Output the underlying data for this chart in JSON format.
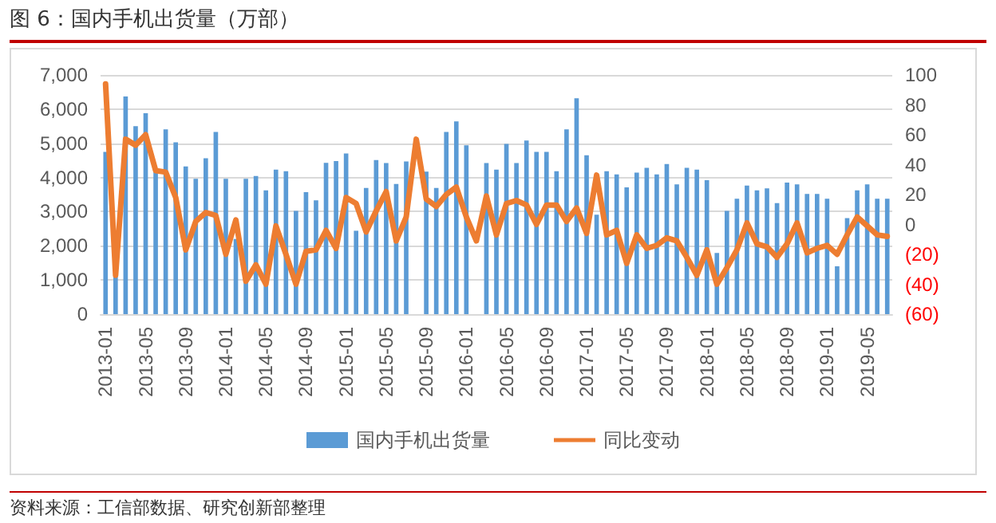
{
  "chart_data": {
    "type": "bar",
    "title": "图 6：国内手机出货量（万部）",
    "categories": [
      "2013-01",
      null,
      null,
      null,
      "2013-05",
      null,
      null,
      null,
      "2013-09",
      null,
      null,
      null,
      "2014-01",
      null,
      null,
      null,
      "2014-05",
      null,
      null,
      null,
      "2014-09",
      null,
      null,
      null,
      "2015-01",
      null,
      null,
      null,
      "2015-05",
      null,
      null,
      null,
      "2015-09",
      null,
      null,
      null,
      "2016-01",
      null,
      null,
      null,
      "2016-05",
      null,
      null,
      null,
      "2016-09",
      null,
      null,
      null,
      "2017-01",
      null,
      null,
      null,
      "2017-05",
      null,
      null,
      null,
      "2017-09",
      null,
      null,
      null,
      "2018-01",
      null,
      null,
      null,
      "2018-05",
      null,
      null,
      null,
      "2018-09",
      null,
      null,
      null,
      "2019-01",
      null,
      null,
      null,
      "2019-05",
      null,
      null
    ],
    "series": [
      {
        "name": "国内手机出货量",
        "color": "#5b9bd5",
        "values": [
          4750,
          1200,
          6370,
          5500,
          5880,
          4200,
          5410,
          5030,
          4320,
          3960,
          4560,
          5330,
          3960,
          2200,
          3960,
          4040,
          3620,
          4230,
          4180,
          3020,
          3570,
          3330,
          4430,
          4480,
          4700,
          2440,
          3690,
          4510,
          4420,
          3810,
          4470,
          null,
          4170,
          3690,
          5330,
          5640,
          4940,
          null,
          4420,
          4230,
          4980,
          4420,
          5080,
          4750,
          4750,
          4180,
          5410,
          6320,
          4650,
          2910,
          4180,
          4090,
          3710,
          4140,
          4280,
          4090,
          4390,
          3800,
          4280,
          4230,
          3920,
          1790,
          3020,
          3380,
          3760,
          3620,
          3680,
          3250,
          3850,
          3800,
          3520,
          3520,
          3380,
          1400,
          2810,
          3620,
          3800,
          3380,
          3380
        ]
      },
      {
        "name": "同比变动",
        "type": "line",
        "axis": "y2",
        "color": "#ed7d31",
        "values": [
          94,
          -34,
          57,
          53,
          60,
          36,
          35,
          18,
          -17,
          2,
          8,
          6,
          -20,
          3,
          -38,
          -27,
          -40,
          -1,
          -20,
          -40,
          -18,
          -17,
          -4,
          -16,
          18,
          14,
          -5,
          9,
          22,
          -11,
          5,
          57,
          17,
          12,
          20,
          25,
          5,
          -11,
          19,
          -7,
          14,
          16,
          13,
          0,
          13,
          13,
          2,
          11,
          -6,
          33,
          -7,
          -4,
          -26,
          -7,
          -16,
          -14,
          -9,
          -11,
          -22,
          -34,
          -17,
          -40,
          -29,
          -17,
          1,
          -13,
          -15,
          -22,
          -13,
          1,
          -19,
          -16,
          -14,
          -20,
          -7,
          5,
          -1,
          -7,
          -8
        ]
      }
    ],
    "ylim": [
      0,
      7000
    ],
    "yticks": [
      0,
      {
        "value": 1000,
        "label": "1,000"
      },
      {
        "value": 2000,
        "label": "2,000"
      },
      {
        "value": 3000,
        "label": "3,000"
      },
      {
        "value": 4000,
        "label": "4,000"
      },
      {
        "value": 5000,
        "label": "5,000"
      },
      {
        "value": 6000,
        "label": "6,000"
      },
      {
        "value": 7000,
        "label": "7,000"
      }
    ],
    "y2lim": [
      -60,
      100
    ],
    "y2ticks": [
      {
        "value": -60,
        "label": "(60)"
      },
      {
        "value": -40,
        "label": "(40)"
      },
      {
        "value": -20,
        "label": "(20)"
      },
      0,
      20,
      40,
      60,
      80,
      100
    ],
    "grid": "y",
    "legend": "bottom",
    "marker": "none",
    "line_style": "solid",
    "annotations": [
      "资料来源：工信部数据、研究创新部整理"
    ]
  }
}
